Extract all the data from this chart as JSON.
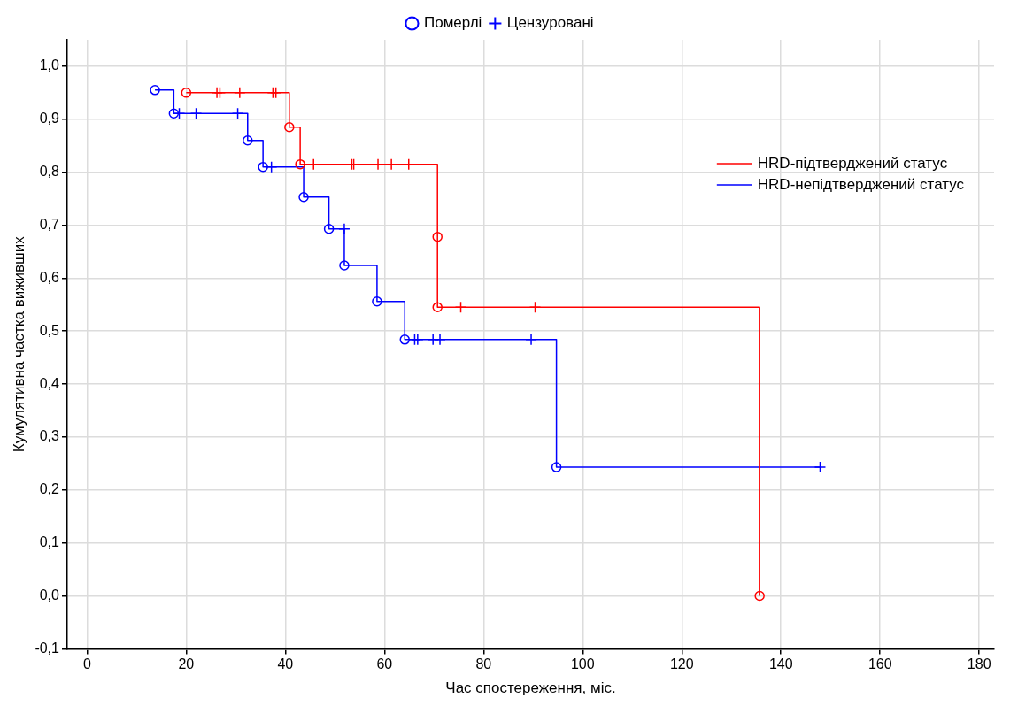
{
  "chart_data": {
    "type": "step",
    "xlabel": "Час спостереження, міс.",
    "ylabel": "Кумулятивна частка виживших",
    "xlim": [
      -4,
      183
    ],
    "xticks": [
      0,
      20,
      40,
      60,
      80,
      100,
      120,
      140,
      160,
      180
    ],
    "ylim": [
      -0.1,
      1.05
    ],
    "yticks": [
      {
        "value": -0.1,
        "label": "-0,1"
      },
      {
        "value": 0,
        "label": "0,0"
      },
      {
        "value": 0.1,
        "label": "0,1"
      },
      {
        "value": 0.2,
        "label": "0,2"
      },
      {
        "value": 0.3,
        "label": "0,3"
      },
      {
        "value": 0.4,
        "label": "0,4"
      },
      {
        "value": 0.5,
        "label": "0,5"
      },
      {
        "value": 0.6,
        "label": "0,6"
      },
      {
        "value": 0.7,
        "label": "0,7"
      },
      {
        "value": 0.8,
        "label": "0,8"
      },
      {
        "value": 0.9,
        "label": "0,9"
      },
      {
        "value": 1,
        "label": "1,0"
      }
    ],
    "grid": true,
    "legend": "top right",
    "series": [
      {
        "name": "HRD-підтверджений статус",
        "color": "#ff0000",
        "marker": "none",
        "x": [
          20,
          26.2,
          26.8,
          30.8,
          37.5,
          38.1,
          40.8,
          43,
          45.7,
          53.4,
          53.8,
          58.7,
          61.4,
          64.9,
          70.7,
          70.7,
          75.4,
          90.4,
          135.7
        ],
        "values": [
          0.95,
          0.95,
          0.95,
          0.95,
          0.95,
          0.95,
          0.885,
          0.815,
          0.815,
          0.815,
          0.815,
          0.815,
          0.815,
          0.815,
          0.678,
          0.545,
          0.545,
          0.545,
          0
        ]
      },
      {
        "name": "HRD-непідтверджений статус",
        "color": "#0000ff",
        "marker": "none",
        "x": [
          13.7,
          17.5,
          18.6,
          22,
          30.4,
          32.4,
          35.5,
          37.2,
          43.7,
          48.8,
          51.9,
          51.9,
          58.5,
          64.1,
          66.1,
          66.7,
          69.8,
          71.2,
          89.6,
          94.7,
          147.9
        ],
        "values": [
          0.955,
          0.911,
          0.911,
          0.911,
          0.911,
          0.86,
          0.81,
          0.81,
          0.753,
          0.693,
          0.693,
          0.624,
          0.556,
          0.484,
          0.484,
          0.484,
          0.484,
          0.484,
          0.484,
          0.243,
          0.243
        ]
      },
      {
        "name": "Померлі",
        "type": "scatter",
        "marker": "circle",
        "color": "#0000ff",
        "x": [
          20,
          40.8,
          43,
          70.7,
          70.7,
          135.7,
          13.7,
          17.5,
          32.4,
          35.5,
          43.7,
          48.8,
          51.9,
          58.5,
          64.1,
          94.7
        ],
        "values": [
          0.95,
          0.885,
          0.815,
          0.678,
          0.545,
          0,
          0.955,
          0.911,
          0.86,
          0.81,
          0.753,
          0.693,
          0.624,
          0.556,
          0.484,
          0.243
        ],
        "colors": [
          "#ff0000",
          "#ff0000",
          "#ff0000",
          "#ff0000",
          "#ff0000",
          "#ff0000",
          "#0000ff",
          "#0000ff",
          "#0000ff",
          "#0000ff",
          "#0000ff",
          "#0000ff",
          "#0000ff",
          "#0000ff",
          "#0000ff",
          "#0000ff"
        ]
      },
      {
        "name": "Цензуровані",
        "type": "scatter",
        "marker": "cross",
        "color": "#0000ff",
        "x": [
          26.2,
          26.8,
          30.8,
          37.5,
          38.1,
          45.7,
          53.4,
          53.8,
          58.7,
          61.4,
          64.9,
          75.4,
          90.4,
          18.6,
          22,
          30.4,
          37.2,
          51.9,
          66.1,
          66.7,
          69.8,
          71.2,
          89.6,
          147.9
        ],
        "values": [
          0.95,
          0.95,
          0.95,
          0.95,
          0.95,
          0.815,
          0.815,
          0.815,
          0.815,
          0.815,
          0.815,
          0.545,
          0.545,
          0.911,
          0.911,
          0.911,
          0.81,
          0.693,
          0.484,
          0.484,
          0.484,
          0.484,
          0.484,
          0.243
        ],
        "colors": [
          "#ff0000",
          "#ff0000",
          "#ff0000",
          "#ff0000",
          "#ff0000",
          "#ff0000",
          "#ff0000",
          "#ff0000",
          "#ff0000",
          "#ff0000",
          "#ff0000",
          "#ff0000",
          "#ff0000",
          "#0000ff",
          "#0000ff",
          "#0000ff",
          "#0000ff",
          "#0000ff",
          "#0000ff",
          "#0000ff",
          "#0000ff",
          "#0000ff",
          "#0000ff",
          "#0000ff"
        ]
      }
    ]
  }
}
